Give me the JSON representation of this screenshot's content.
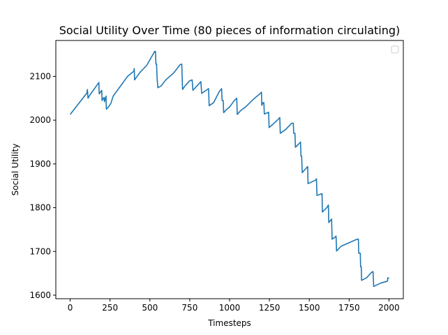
{
  "chart_data": {
    "type": "line",
    "title": "Social Utility Over Time (80 pieces of information circulating)",
    "xlabel": "Timesteps",
    "ylabel": "Social Utility",
    "xlim": [
      -90,
      2090
    ],
    "ylim": [
      1592,
      2182
    ],
    "xticks": [
      0,
      250,
      500,
      750,
      1000,
      1250,
      1500,
      1750,
      2000
    ],
    "yticks": [
      1600,
      1700,
      1800,
      1900,
      2000,
      2100
    ],
    "grid": false,
    "legend": "top-right (empty)",
    "series": [
      {
        "color": "#1f77b4",
        "points": [
          [
            0,
            2013
          ],
          [
            105,
            2062
          ],
          [
            108,
            2070
          ],
          [
            112,
            2050
          ],
          [
            125,
            2058
          ],
          [
            180,
            2086
          ],
          [
            182,
            2060
          ],
          [
            198,
            2068
          ],
          [
            200,
            2045
          ],
          [
            212,
            2052
          ],
          [
            215,
            2042
          ],
          [
            225,
            2055
          ],
          [
            227,
            2025
          ],
          [
            240,
            2030
          ],
          [
            255,
            2038
          ],
          [
            270,
            2055
          ],
          [
            320,
            2080
          ],
          [
            360,
            2100
          ],
          [
            400,
            2112
          ],
          [
            402,
            2118
          ],
          [
            404,
            2092
          ],
          [
            440,
            2110
          ],
          [
            480,
            2125
          ],
          [
            530,
            2157
          ],
          [
            535,
            2157
          ],
          [
            538,
            2128
          ],
          [
            542,
            2128
          ],
          [
            545,
            2098
          ],
          [
            550,
            2074
          ],
          [
            570,
            2078
          ],
          [
            600,
            2092
          ],
          [
            650,
            2108
          ],
          [
            690,
            2127
          ],
          [
            700,
            2128
          ],
          [
            705,
            2070
          ],
          [
            720,
            2078
          ],
          [
            750,
            2090
          ],
          [
            765,
            2092
          ],
          [
            770,
            2068
          ],
          [
            800,
            2080
          ],
          [
            820,
            2088
          ],
          [
            825,
            2061
          ],
          [
            860,
            2070
          ],
          [
            868,
            2072
          ],
          [
            872,
            2033
          ],
          [
            900,
            2040
          ],
          [
            935,
            2065
          ],
          [
            950,
            2072
          ],
          [
            953,
            2045
          ],
          [
            960,
            2045
          ],
          [
            963,
            2017
          ],
          [
            980,
            2024
          ],
          [
            1000,
            2030
          ],
          [
            1030,
            2045
          ],
          [
            1045,
            2050
          ],
          [
            1048,
            2013
          ],
          [
            1070,
            2022
          ],
          [
            1100,
            2030
          ],
          [
            1150,
            2048
          ],
          [
            1190,
            2060
          ],
          [
            1200,
            2064
          ],
          [
            1202,
            2034
          ],
          [
            1210,
            2040
          ],
          [
            1215,
            2040
          ],
          [
            1218,
            2014
          ],
          [
            1245,
            2018
          ],
          [
            1248,
            1983
          ],
          [
            1270,
            1990
          ],
          [
            1300,
            2000
          ],
          [
            1315,
            2006
          ],
          [
            1318,
            1970
          ],
          [
            1350,
            1978
          ],
          [
            1390,
            1993
          ],
          [
            1400,
            1993
          ],
          [
            1402,
            1970
          ],
          [
            1410,
            1970
          ],
          [
            1413,
            1938
          ],
          [
            1430,
            1944
          ],
          [
            1445,
            1950
          ],
          [
            1448,
            1918
          ],
          [
            1452,
            1918
          ],
          [
            1456,
            1880
          ],
          [
            1470,
            1886
          ],
          [
            1490,
            1894
          ],
          [
            1492,
            1855
          ],
          [
            1540,
            1863
          ],
          [
            1545,
            1866
          ],
          [
            1548,
            1828
          ],
          [
            1580,
            1832
          ],
          [
            1582,
            1790
          ],
          [
            1610,
            1800
          ],
          [
            1620,
            1806
          ],
          [
            1622,
            1766
          ],
          [
            1635,
            1772
          ],
          [
            1640,
            1774
          ],
          [
            1643,
            1728
          ],
          [
            1660,
            1732
          ],
          [
            1668,
            1735
          ],
          [
            1671,
            1701
          ],
          [
            1700,
            1712
          ],
          [
            1750,
            1720
          ],
          [
            1800,
            1728
          ],
          [
            1808,
            1728
          ],
          [
            1810,
            1696
          ],
          [
            1820,
            1696
          ],
          [
            1822,
            1665
          ],
          [
            1826,
            1665
          ],
          [
            1828,
            1634
          ],
          [
            1860,
            1640
          ],
          [
            1890,
            1652
          ],
          [
            1900,
            1654
          ],
          [
            1904,
            1620
          ],
          [
            1950,
            1628
          ],
          [
            1990,
            1632
          ],
          [
            1993,
            1640
          ],
          [
            2000,
            1638
          ]
        ]
      }
    ]
  }
}
